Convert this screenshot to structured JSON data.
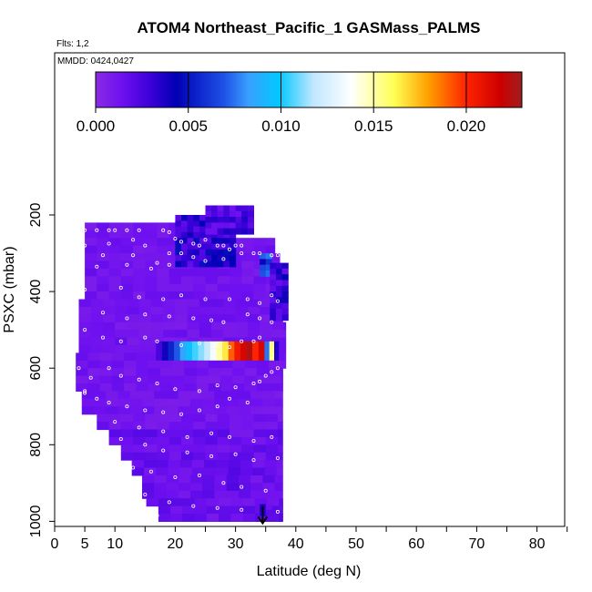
{
  "chart_data": {
    "type": "heatmap",
    "title": "ATOM4 Northeast_Pacific_1 GASMass_PALMS",
    "flights_label": "Flts: 1,2",
    "dates_label": "MMDD: 0424,0427",
    "xlabel": "Latitude (deg N)",
    "ylabel": "PSXC (mbar)",
    "xlim": [
      0,
      85
    ],
    "ylim": [
      1000,
      100
    ],
    "x_ticks": [
      0,
      5,
      10,
      20,
      30,
      40,
      50,
      60,
      70,
      80
    ],
    "y_ticks": [
      200,
      400,
      600,
      800,
      1000
    ],
    "colorbar": {
      "range": [
        0,
        0.023
      ],
      "ticks": [
        "0.000",
        "0.005",
        "0.010",
        "0.015",
        "0.020"
      ],
      "tick_values": [
        0,
        0.005,
        0.01,
        0.015,
        0.02
      ]
    },
    "background_value": 0.0012,
    "blocks": [
      {
        "lat": [
          32,
          34
        ],
        "p": [
          580,
          540
        ],
        "value": 0.012
      },
      {
        "lat": [
          20,
          30
        ],
        "p": [
          330,
          200
        ],
        "value": 0.004
      },
      {
        "lat": [
          25,
          33
        ],
        "p": [
          250,
          175
        ],
        "value": 0.003
      },
      {
        "lat": [
          34,
          36
        ],
        "p": [
          350,
          300
        ],
        "value": 0.008
      },
      {
        "lat": [
          35.7,
          37.8
        ],
        "p": [
          465,
          325
        ],
        "value": 0.0035
      },
      {
        "lat": [
          34,
          35.5
        ],
        "p": [
          955,
          985
        ],
        "value": 0.003
      }
    ],
    "arrow": {
      "lat": 34.5,
      "p_from": 960,
      "p_to": 1005
    }
  }
}
